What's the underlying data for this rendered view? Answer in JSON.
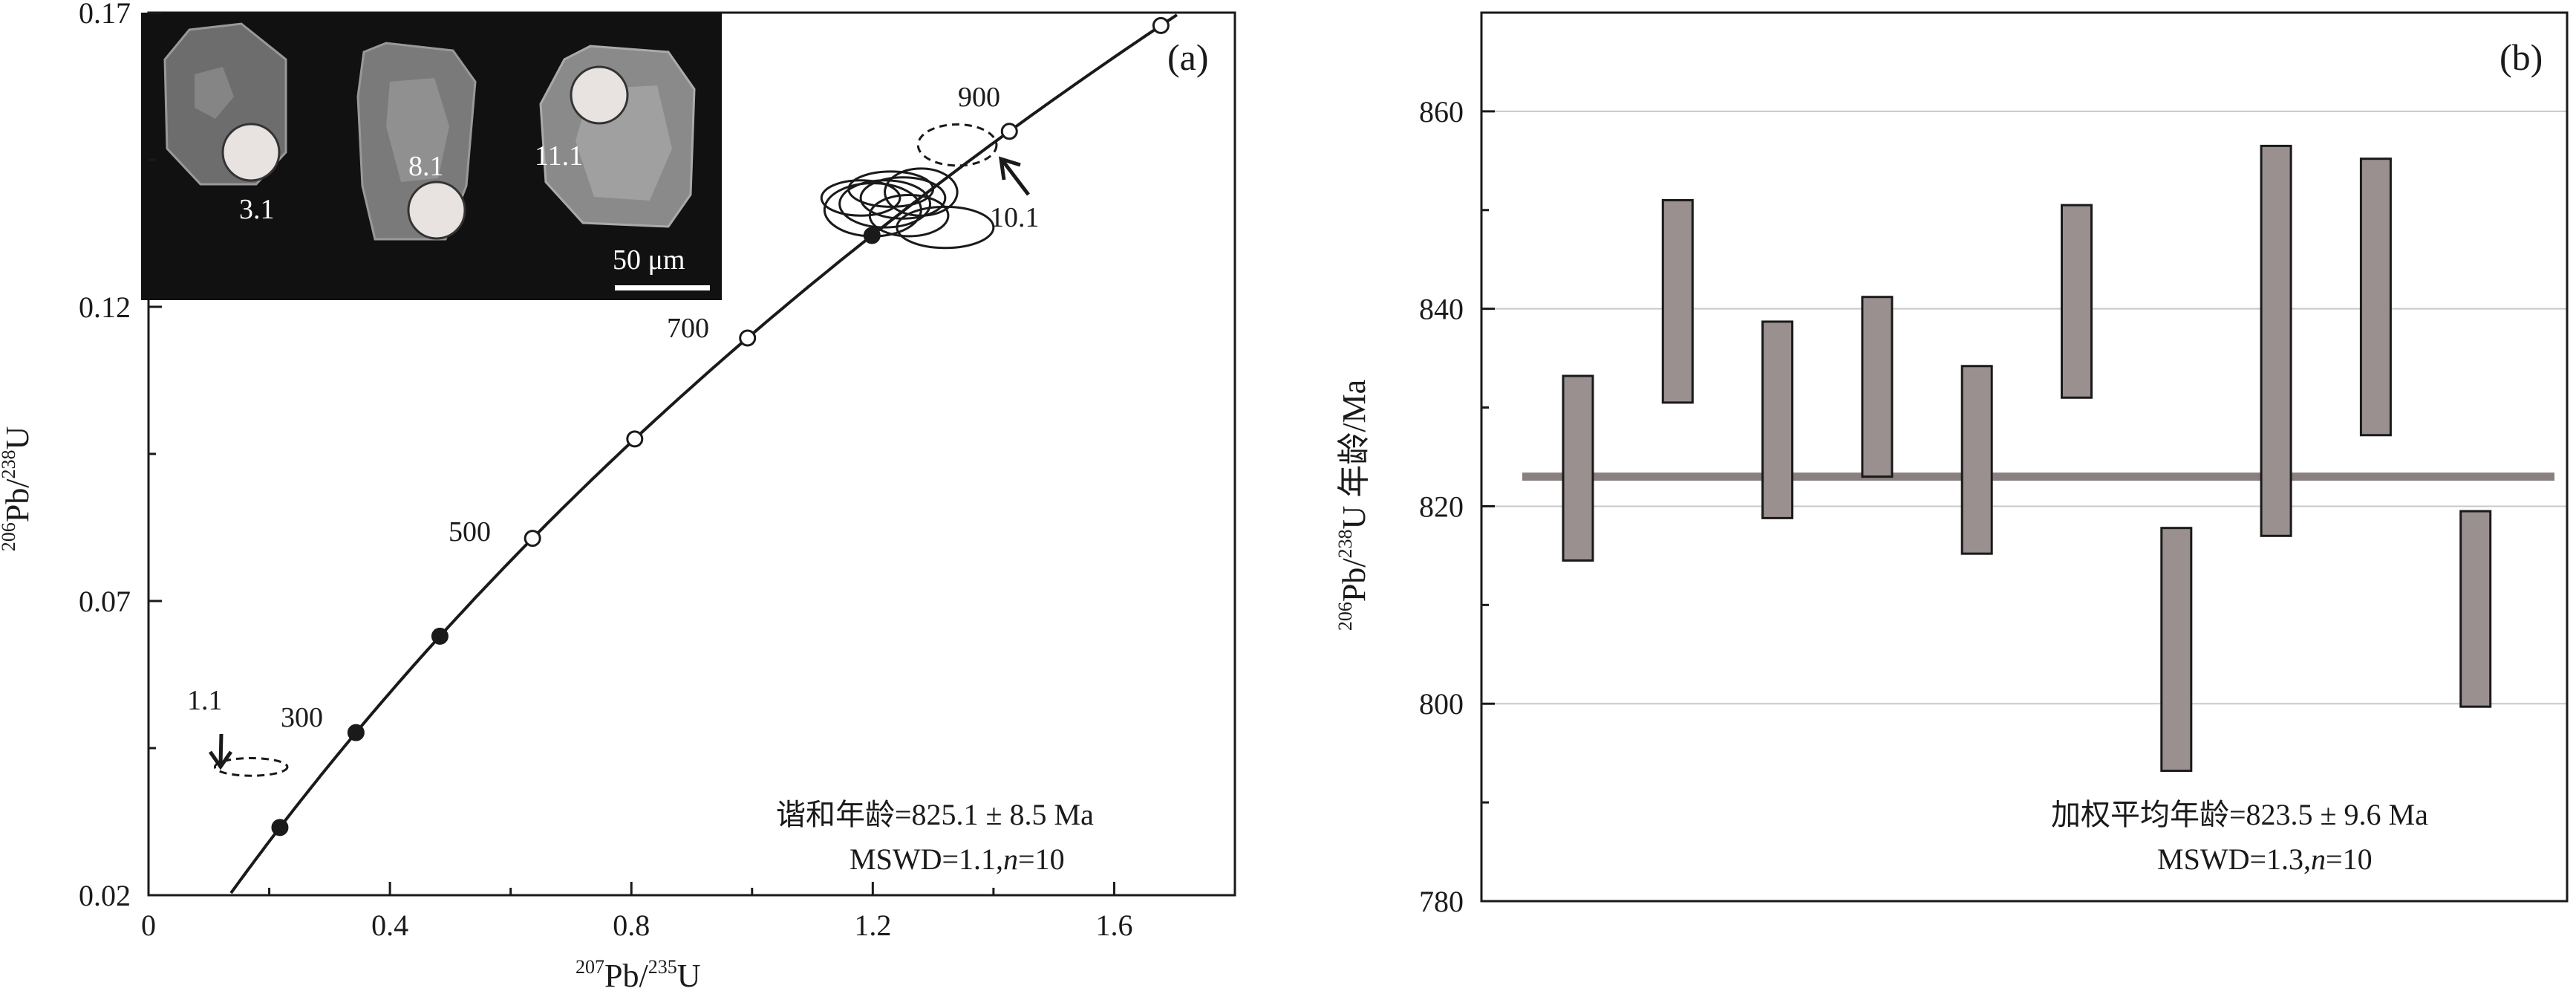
{
  "panel_a": {
    "label": "(a)",
    "x_axis_title": {
      "sup": "207",
      "main": "Pb/",
      "sup2": "235",
      "tail": "U"
    },
    "y_axis_title": {
      "sup": "206",
      "main": "Pb/",
      "sup2": "238",
      "tail": "U"
    },
    "age_marks": [
      "300",
      "500",
      "700",
      "900"
    ],
    "spot_arrow_labels": [
      "1.1",
      "10.1"
    ],
    "inset": {
      "spot_labels": [
        "3.1",
        "8.1",
        "11.1"
      ],
      "scale_bar": "50 μm"
    },
    "note_line1": "谐和年龄=825.1 ± 8.5 Ma",
    "note_line2_prefix": "MSWD=1.1,",
    "note_line2_n": "n",
    "note_line2_suffix": "=10"
  },
  "panel_b": {
    "label": "(b)",
    "y_axis_title": {
      "sup": "206",
      "main": "Pb/",
      "sup2": "238",
      "tail": "U 年龄/Ma"
    },
    "note_line1": "加权平均年龄=823.5 ± 9.6 Ma",
    "note_line2_prefix": "MSWD=1.3,",
    "note_line2_n": "n",
    "note_line2_suffix": "=10"
  },
  "chart_data": [
    {
      "type": "scatter",
      "title": "(a)",
      "xlabel": "207Pb/235U",
      "ylabel": "206Pb/238U",
      "xlim": [
        0,
        1.8
      ],
      "ylim": [
        0.02,
        0.17
      ],
      "x_ticks": [
        "0",
        "0.4",
        "0.8",
        "1.2",
        "1.6"
      ],
      "y_ticks": [
        "0.02",
        "0.07",
        "0.12",
        "0.17"
      ],
      "concordia_age_markers_Ma": [
        200,
        300,
        400,
        500,
        600,
        700,
        800,
        900,
        1000
      ],
      "labeled_ages_Ma": [
        300,
        500,
        700,
        900
      ],
      "analysis_ellipses": [
        {
          "x": 1.22,
          "y": 0.1375,
          "rx": 0.075,
          "ry": 0.004
        },
        {
          "x": 1.25,
          "y": 0.1385,
          "rx": 0.07,
          "ry": 0.0035
        },
        {
          "x": 1.2,
          "y": 0.1365,
          "rx": 0.08,
          "ry": 0.0045
        },
        {
          "x": 1.28,
          "y": 0.1395,
          "rx": 0.06,
          "ry": 0.004
        },
        {
          "x": 1.23,
          "y": 0.14,
          "rx": 0.07,
          "ry": 0.003
        },
        {
          "x": 1.26,
          "y": 0.1355,
          "rx": 0.065,
          "ry": 0.0035
        },
        {
          "x": 1.32,
          "y": 0.1335,
          "rx": 0.08,
          "ry": 0.0035
        },
        {
          "x": 1.18,
          "y": 0.1385,
          "rx": 0.065,
          "ry": 0.003
        }
      ],
      "dashed_ellipses": [
        {
          "spot": "10.1",
          "x": 1.34,
          "y": 0.1475,
          "rx": 0.065,
          "ry": 0.0035
        },
        {
          "spot": "1.1",
          "x": 0.17,
          "y": 0.0418,
          "rx": 0.06,
          "ry": 0.0015
        }
      ],
      "concordia_age": "825.1 ± 8.5 Ma",
      "mswd": 1.1,
      "n": 10
    },
    {
      "type": "bar",
      "title": "(b)",
      "ylabel": "206Pb/238U 年龄/Ma",
      "ylim": [
        780,
        870
      ],
      "y_ticks": [
        "780",
        "800",
        "820",
        "840",
        "860"
      ],
      "grid": true,
      "series": [
        {
          "values": [
            {
              "low": 814.5,
              "high": 833.2
            },
            {
              "low": 830.5,
              "high": 851.0
            },
            {
              "low": 818.8,
              "high": 838.7
            },
            {
              "low": 823.0,
              "high": 841.2
            },
            {
              "low": 815.2,
              "high": 834.2
            },
            {
              "low": 831.0,
              "high": 850.5
            },
            {
              "low": 793.2,
              "high": 817.8
            },
            {
              "low": 817.0,
              "high": 856.5
            },
            {
              "low": 827.2,
              "high": 855.2
            },
            {
              "low": 799.7,
              "high": 819.5
            }
          ]
        }
      ],
      "weighted_mean": 823,
      "weighted_mean_label": "823.5 ± 9.6 Ma",
      "mswd": 1.3,
      "n": 10,
      "colors": {
        "bar_fill": "#9a9090",
        "mean_line": "#8a8080"
      }
    }
  ]
}
